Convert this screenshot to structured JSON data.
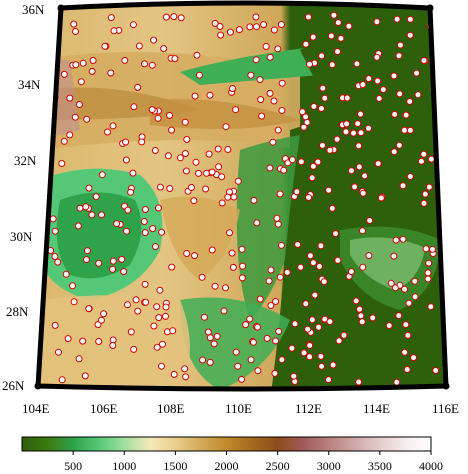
{
  "map": {
    "lat_labels": [
      "26N",
      "28N",
      "30N",
      "32N",
      "34N",
      "36N"
    ],
    "lon_labels": [
      "104E",
      "106E",
      "108E",
      "110E",
      "112E",
      "114E",
      "116E"
    ],
    "extent": {
      "lon": [
        104,
        116
      ],
      "lat": [
        26,
        36
      ]
    },
    "projection": "conic",
    "frame_color": "#000000",
    "station_marker": {
      "fill": "#ffffff",
      "stroke": "#d40000"
    }
  },
  "colorbar": {
    "ticks": [
      "500",
      "1000",
      "1500",
      "2000",
      "2500",
      "3000",
      "3500",
      "4000"
    ],
    "range": [
      0,
      4000
    ],
    "colors": [
      "#2e5f0a",
      "#3c7a10",
      "#2ea34a",
      "#55c878",
      "#9fe0a0",
      "#f5e9b8",
      "#e8cf8e",
      "#d4a958",
      "#c18b2c",
      "#a56a1e",
      "#8c4d1c",
      "#a05a5a",
      "#b98080",
      "#d0a8a8",
      "#e4cccc",
      "#f6eeee",
      "#ffffff"
    ]
  }
}
